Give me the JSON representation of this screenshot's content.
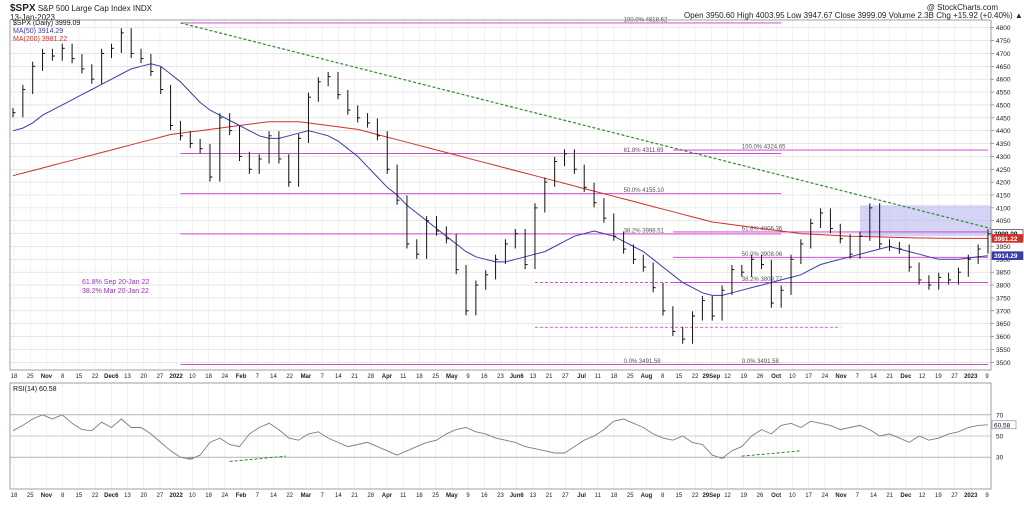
{
  "header": {
    "symbol": "$SPX",
    "name": "S&P 500 Large Cap Index  INDX",
    "date": "13-Jan-2023",
    "credit": "@ StockCharts.com",
    "quote": "Open 3950.60  High 4003.95  Low 3947.67  Close 3999.09  Volume 2.3B  Chg +15.92 (+0.40%) ▲"
  },
  "legend": {
    "price": "$SPX (Daily) 3999.09",
    "ma50": "MA(50) 3914.29",
    "ma200": "MA(200) 3981.22",
    "rsi": "RSI(14) 60.58"
  },
  "colors": {
    "price": "#111111",
    "ma50": "#3a3ca8",
    "ma200": "#d0302a",
    "fib": "#cc33cc",
    "trendline": "#2e8b2e",
    "zone": "#b8b8f0",
    "rsi": "#7a7a9a",
    "grid": "#d8d8d8"
  },
  "annotations": {
    "fib_note_1": "61.8% Sep 20-Jan 22",
    "fib_note_2": "38.2% Mar 20-Jan 22"
  },
  "chart_data": [
    {
      "type": "line",
      "title": "$SPX (Daily) 3999.09",
      "ylim": [
        3470,
        4830
      ],
      "y_ticks": [
        3500,
        3550,
        3600,
        3650,
        3700,
        3750,
        3800,
        3850,
        3900,
        3950,
        4000,
        4050,
        4100,
        4150,
        4200,
        4250,
        4300,
        4350,
        4400,
        4450,
        4500,
        4550,
        4600,
        4650,
        4700,
        4750,
        4800
      ],
      "x_tick_labels": [
        "18",
        "25",
        "Nov",
        "8",
        "15",
        "22",
        "Dec6",
        "13",
        "20",
        "27",
        "2022",
        "10",
        "18",
        "24",
        "Feb",
        "7",
        "14",
        "22",
        "Mar",
        "7",
        "14",
        "21",
        "28",
        "Apr",
        "11",
        "18",
        "25",
        "May",
        "9",
        "16",
        "23",
        "Jun6",
        "13",
        "21",
        "27",
        "Jul",
        "11",
        "18",
        "25",
        "Aug",
        "8",
        "15",
        "22",
        "29Sep",
        "12",
        "19",
        "26",
        "Oct",
        "10",
        "17",
        "24",
        "Nov",
        "7",
        "14",
        "21",
        "Dec",
        "12",
        "19",
        "27",
        "2023",
        "9"
      ],
      "series": [
        {
          "name": "$SPX (Daily) 3999.09",
          "values": [
            4470,
            4560,
            4650,
            4700,
            4690,
            4720,
            4680,
            4640,
            4600,
            4700,
            4720,
            4780,
            4700,
            4680,
            4630,
            4560,
            4420,
            4380,
            4350,
            4330,
            4220,
            4450,
            4400,
            4300,
            4250,
            4290,
            4380,
            4290,
            4200,
            4370,
            4530,
            4590,
            4610,
            4540,
            4480,
            4450,
            4430,
            4380,
            4250,
            4130,
            3960,
            3920,
            4050,
            4010,
            3980,
            3860,
            3700,
            3800,
            3840,
            3900,
            3960,
            4000,
            3880,
            4100,
            4200,
            4280,
            4310,
            4250,
            4180,
            4120,
            4060,
            3990,
            3940,
            3900,
            3870,
            3790,
            3700,
            3620,
            3590,
            3680,
            3740,
            3680,
            3780,
            3860,
            3850,
            3900,
            3880,
            3730,
            3780,
            3900,
            3960,
            4040,
            4080,
            4020,
            3980,
            3920,
            3990,
            4100,
            3960,
            3950,
            3940,
            3870,
            3820,
            3800,
            3830,
            3820,
            3850,
            3900,
            3940,
            3999.09
          ]
        },
        {
          "name": "MA(50) 3914.29",
          "values": [
            4400,
            4410,
            4430,
            4460,
            4480,
            4500,
            4520,
            4540,
            4560,
            4580,
            4600,
            4620,
            4640,
            4650,
            4660,
            4650,
            4620,
            4590,
            4550,
            4510,
            4480,
            4460,
            4440,
            4420,
            4400,
            4380,
            4370,
            4370,
            4380,
            4390,
            4400,
            4390,
            4380,
            4360,
            4330,
            4300,
            4260,
            4220,
            4180,
            4150,
            4110,
            4080,
            4050,
            4020,
            3990,
            3960,
            3930,
            3910,
            3900,
            3890,
            3890,
            3900,
            3910,
            3920,
            3930,
            3950,
            3970,
            3990,
            4000,
            4010,
            4000,
            3990,
            3970,
            3950,
            3930,
            3900,
            3870,
            3840,
            3810,
            3790,
            3770,
            3760,
            3760,
            3770,
            3780,
            3790,
            3800,
            3810,
            3820,
            3830,
            3840,
            3860,
            3880,
            3890,
            3900,
            3910,
            3920,
            3930,
            3940,
            3950,
            3940,
            3930,
            3920,
            3910,
            3900,
            3900,
            3900,
            3905,
            3910,
            3914.29
          ]
        },
        {
          "name": "MA(200) 3981.22",
          "values": [
            4225,
            4235,
            4245,
            4255,
            4265,
            4275,
            4285,
            4295,
            4305,
            4315,
            4325,
            4335,
            4345,
            4355,
            4365,
            4375,
            4385,
            4390,
            4395,
            4400,
            4405,
            4410,
            4415,
            4420,
            4425,
            4430,
            4435,
            4435,
            4435,
            4435,
            4430,
            4425,
            4420,
            4415,
            4410,
            4405,
            4395,
            4385,
            4375,
            4365,
            4355,
            4345,
            4335,
            4325,
            4315,
            4305,
            4295,
            4285,
            4275,
            4265,
            4255,
            4245,
            4235,
            4225,
            4215,
            4205,
            4195,
            4185,
            4175,
            4165,
            4155,
            4145,
            4135,
            4125,
            4115,
            4105,
            4095,
            4085,
            4075,
            4065,
            4055,
            4045,
            4040,
            4035,
            4030,
            4025,
            4020,
            4015,
            4010,
            4005,
            4000,
            3998,
            3996,
            3994,
            3992,
            3990,
            3989,
            3988,
            3987,
            3986,
            3985,
            3984,
            3983,
            3983,
            3982,
            3982,
            3981.5,
            3981.4,
            3981.3,
            3981.22
          ]
        }
      ],
      "fib_levels": [
        {
          "label": "100.0% 4818.62",
          "value": 4818.62
        },
        {
          "label": "61.8% 4311.69",
          "value": 4311.69
        },
        {
          "label": "50.0% 4155.10",
          "value": 4155.1
        },
        {
          "label": "38.2% 3998.51",
          "value": 3998.51
        },
        {
          "label": "0.0% 3491.58",
          "value": 3491.58
        },
        {
          "label": "100.0% 4324.65",
          "value": 4324.65
        },
        {
          "label": "61.8% 4006.36",
          "value": 4006.36
        },
        {
          "label": "50.0% 3908.06",
          "value": 3908.06
        },
        {
          "label": "38.2% 3809.77",
          "value": 3809.77
        },
        {
          "label": "0.0% 3491.58",
          "value": 3491.58
        }
      ],
      "extra_levels": [
        3636,
        3809.77
      ],
      "trendline": [
        4818.62,
        4020
      ],
      "resistance_zone": [
        3990,
        4110
      ],
      "last_labels": [
        "3999.09",
        "3981.22",
        "3914.29"
      ]
    },
    {
      "type": "line",
      "title": "RSI(14) 60.58",
      "ylim": [
        0,
        100
      ],
      "y_ticks": [
        30,
        50,
        70
      ],
      "series": [
        {
          "name": "RSI(14) 60.58",
          "values": [
            55,
            60,
            66,
            70,
            66,
            70,
            62,
            56,
            55,
            63,
            58,
            66,
            58,
            58,
            52,
            44,
            36,
            30,
            28,
            32,
            44,
            48,
            42,
            40,
            52,
            58,
            62,
            56,
            48,
            46,
            52,
            54,
            48,
            44,
            40,
            42,
            44,
            40,
            36,
            32,
            36,
            40,
            44,
            46,
            52,
            56,
            58,
            54,
            52,
            48,
            46,
            44,
            40,
            38,
            36,
            34,
            34,
            40,
            46,
            50,
            56,
            64,
            66,
            62,
            58,
            52,
            48,
            46,
            50,
            44,
            42,
            32,
            29,
            36,
            40,
            50,
            56,
            52,
            60,
            62,
            58,
            64,
            62,
            60,
            56,
            58,
            60,
            56,
            50,
            52,
            48,
            44,
            50,
            46,
            48,
            52,
            54,
            58,
            60,
            60.58
          ]
        }
      ],
      "last_label": "60.58",
      "divergence_lines": [
        [
          40,
          26,
          44,
          31
        ],
        [
          40,
          31,
          44,
          36
        ]
      ]
    }
  ]
}
